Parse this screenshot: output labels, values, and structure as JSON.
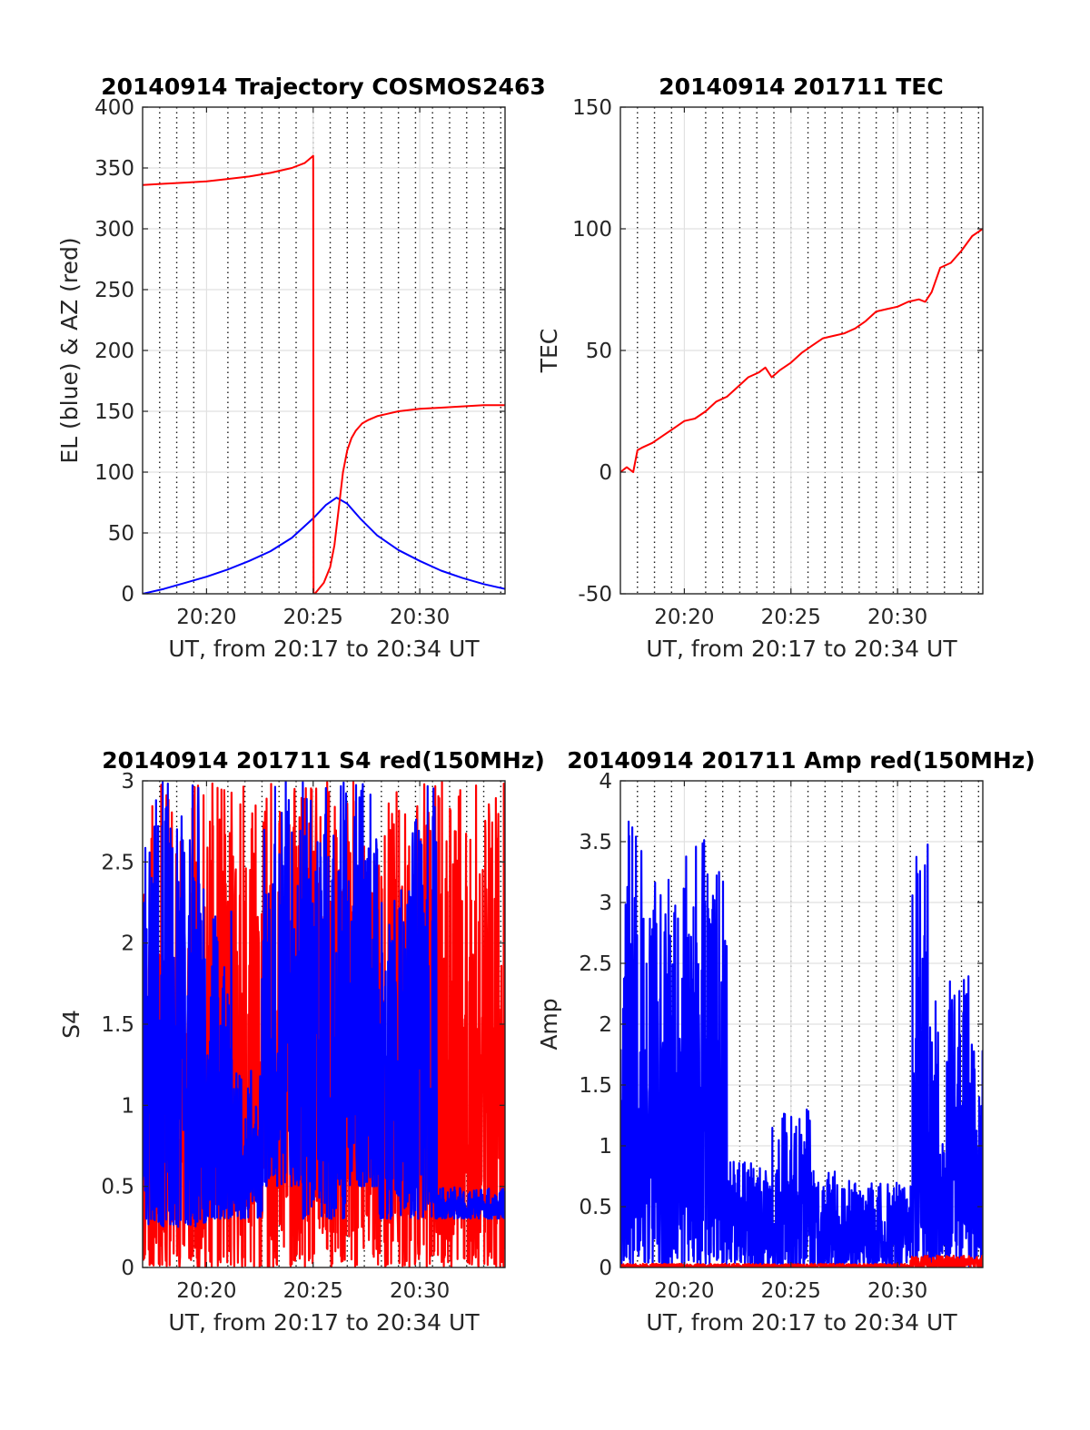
{
  "chart_data": [
    {
      "type": "line",
      "title": "20140914 Trajectory COSMOS2463",
      "xlabel": "UT, from 20:17 to 20:34 UT",
      "ylabel": "EL (blue) & AZ (red)",
      "xlim": [
        17,
        34
      ],
      "ylim": [
        0,
        400
      ],
      "xticks": [
        20,
        25,
        30
      ],
      "xtick_labels": [
        "20:20",
        "20:25",
        "20:30"
      ],
      "yticks": [
        0,
        50,
        100,
        150,
        200,
        250,
        300,
        350,
        400
      ],
      "ytick_labels": [
        "0",
        "50",
        "100",
        "150",
        "200",
        "250",
        "300",
        "350",
        "400"
      ],
      "minor_x_grid": [
        17.8,
        18.6,
        19.4,
        21.0,
        21.8,
        22.6,
        23.4,
        24.2,
        25.0,
        25.8,
        26.6,
        27.4,
        28.2,
        29.0,
        29.8,
        30.6,
        31.4,
        32.2,
        33.0,
        33.8
      ],
      "grid": true,
      "series": [
        {
          "name": "EL",
          "color": "#0000ff",
          "x": [
            17.0,
            18.0,
            19.0,
            20.0,
            21.0,
            22.0,
            23.0,
            24.0,
            25.0,
            25.6,
            26.1,
            26.6,
            27.2,
            28.0,
            29.0,
            30.0,
            31.0,
            32.0,
            33.0,
            34.0
          ],
          "y": [
            0,
            4,
            9,
            14,
            20,
            27,
            35,
            46,
            62,
            73,
            79,
            74,
            62,
            48,
            36,
            27,
            19,
            13,
            8,
            4
          ]
        },
        {
          "name": "AZ",
          "color": "#ff0000",
          "x": [
            17.0,
            18.0,
            19.0,
            20.0,
            21.0,
            22.0,
            23.0,
            24.0,
            24.6,
            25.0,
            25.02,
            25.08,
            25.5,
            25.8,
            26.0,
            26.2,
            26.4,
            26.6,
            26.8,
            27.0,
            27.3,
            27.6,
            28.0,
            28.5,
            29.0,
            30.0,
            31.0,
            32.0,
            33.0,
            34.0
          ],
          "y": [
            336,
            337,
            338,
            339,
            341,
            343,
            346,
            350,
            354,
            360,
            1,
            0,
            9,
            22,
            40,
            70,
            100,
            118,
            128,
            134,
            140,
            143,
            146,
            148,
            150,
            152,
            153,
            154,
            155,
            155
          ]
        }
      ]
    },
    {
      "type": "line",
      "title": "20140914 201711 TEC",
      "xlabel": "UT, from 20:17 to 20:34 UT",
      "ylabel": "TEC",
      "xlim": [
        17,
        34
      ],
      "ylim": [
        -50,
        150
      ],
      "xticks": [
        20,
        25,
        30
      ],
      "xtick_labels": [
        "20:20",
        "20:25",
        "20:30"
      ],
      "yticks": [
        -50,
        0,
        50,
        100,
        150
      ],
      "ytick_labels": [
        "-50",
        "0",
        "50",
        "100",
        "150"
      ],
      "minor_x_grid": [
        17.8,
        18.6,
        19.4,
        21.0,
        21.8,
        22.6,
        23.4,
        24.2,
        25.0,
        25.8,
        26.6,
        27.4,
        28.2,
        29.0,
        29.8,
        30.6,
        31.4,
        32.2,
        33.0,
        33.8
      ],
      "grid": true,
      "series": [
        {
          "name": "TEC",
          "color": "#ff0000",
          "x": [
            17.0,
            17.3,
            17.6,
            17.8,
            18.0,
            18.5,
            19.0,
            19.5,
            20.0,
            20.5,
            21.0,
            21.5,
            22.0,
            22.5,
            23.0,
            23.5,
            23.8,
            24.1,
            24.5,
            25.0,
            25.5,
            26.0,
            26.5,
            27.0,
            27.5,
            28.0,
            28.5,
            29.0,
            29.5,
            30.0,
            30.5,
            31.0,
            31.3,
            31.6,
            32.0,
            32.5,
            33.0,
            33.5,
            34.0
          ],
          "y": [
            0,
            2,
            0,
            9,
            10,
            12,
            15,
            18,
            21,
            22,
            25,
            29,
            31,
            35,
            39,
            41,
            43,
            39,
            42,
            45,
            49,
            52,
            55,
            56,
            57,
            59,
            62,
            66,
            67,
            68,
            70,
            71,
            70,
            74,
            84,
            86,
            91,
            97,
            100
          ]
        }
      ]
    },
    {
      "type": "line",
      "title": "20140914 201711 S4 red(150MHz)",
      "xlabel": "UT, from 20:17 to 20:34 UT",
      "ylabel": "S4",
      "xlim": [
        17,
        34
      ],
      "ylim": [
        0,
        3
      ],
      "xticks": [
        20,
        25,
        30
      ],
      "xtick_labels": [
        "20:20",
        "20:25",
        "20:30"
      ],
      "yticks": [
        0,
        0.5,
        1,
        1.5,
        2,
        2.5,
        3
      ],
      "ytick_labels": [
        "0",
        "0.5",
        "1",
        "1.5",
        "2",
        "2.5",
        "3"
      ],
      "minor_x_grid": [
        17.8,
        18.6,
        19.4,
        21.0,
        21.8,
        22.6,
        23.4,
        24.2,
        25.0,
        25.8,
        26.6,
        27.4,
        28.2,
        29.0,
        29.8,
        30.6,
        31.4,
        32.2,
        33.0,
        33.8
      ],
      "grid": true,
      "series": [
        {
          "name": "red",
          "color": "#ff0000",
          "style": "noise",
          "seed": 11,
          "segments": [
            [
              17.0,
              20.2,
              0.0,
              3.0
            ],
            [
              20.2,
              21.3,
              0.0,
              3.0
            ],
            [
              21.3,
              22.8,
              0.0,
              3.0
            ],
            [
              22.8,
              25.5,
              0.0,
              3.0
            ],
            [
              25.5,
              27.2,
              0.0,
              3.0
            ],
            [
              27.2,
              29.0,
              0.0,
              3.0
            ],
            [
              29.0,
              30.5,
              0.0,
              3.0
            ],
            [
              30.5,
              32.5,
              0.0,
              3.0
            ],
            [
              32.5,
              34.0,
              0.0,
              3.0
            ]
          ]
        },
        {
          "name": "blue",
          "color": "#0000ff",
          "style": "noise",
          "seed": 23,
          "segments": [
            [
              17.0,
              18.0,
              0.25,
              3.0
            ],
            [
              18.0,
              20.0,
              0.25,
              3.0
            ],
            [
              20.0,
              21.2,
              0.3,
              2.2
            ],
            [
              21.2,
              22.6,
              0.3,
              1.3
            ],
            [
              22.6,
              24.5,
              0.5,
              3.0
            ],
            [
              24.5,
              26.5,
              0.3,
              3.0
            ],
            [
              26.5,
              28.0,
              0.5,
              3.0
            ],
            [
              28.0,
              29.5,
              0.3,
              2.4
            ],
            [
              29.5,
              30.8,
              0.3,
              3.0
            ],
            [
              30.8,
              34.0,
              0.3,
              0.5
            ]
          ]
        }
      ]
    },
    {
      "type": "line",
      "title": "20140914 201711 Amp red(150MHz)",
      "xlabel": "UT, from 20:17 to 20:34 UT",
      "ylabel": "Amp",
      "xlim": [
        17,
        34
      ],
      "ylim": [
        0,
        4
      ],
      "xticks": [
        20,
        25,
        30
      ],
      "xtick_labels": [
        "20:20",
        "20:25",
        "20:30"
      ],
      "yticks": [
        0,
        0.5,
        1,
        1.5,
        2,
        2.5,
        3,
        3.5,
        4
      ],
      "ytick_labels": [
        "0",
        "0.5",
        "1",
        "1.5",
        "2",
        "2.5",
        "3",
        "3.5",
        "4"
      ],
      "minor_x_grid": [
        17.8,
        18.6,
        19.4,
        21.0,
        21.8,
        22.6,
        23.4,
        24.2,
        25.0,
        25.8,
        26.6,
        27.4,
        28.2,
        29.0,
        29.8,
        30.6,
        31.4,
        32.2,
        33.0,
        33.8
      ],
      "grid": true,
      "series": [
        {
          "name": "blue",
          "color": "#0000ff",
          "style": "noise",
          "seed": 37,
          "segments": [
            [
              17.0,
              18.0,
              0.0,
              3.7
            ],
            [
              18.0,
              20.0,
              0.0,
              3.2
            ],
            [
              20.0,
              21.3,
              0.0,
              3.6
            ],
            [
              21.3,
              22.0,
              0.0,
              3.3
            ],
            [
              22.0,
              24.0,
              0.0,
              0.9
            ],
            [
              24.0,
              26.0,
              0.0,
              1.3
            ],
            [
              26.0,
              28.0,
              0.0,
              0.8
            ],
            [
              28.0,
              30.7,
              0.0,
              0.7
            ],
            [
              30.7,
              31.5,
              0.0,
              3.5
            ],
            [
              31.5,
              34.0,
              0.0,
              2.4
            ]
          ]
        },
        {
          "name": "red",
          "color": "#ff0000",
          "style": "noise",
          "seed": 51,
          "segments": [
            [
              17.0,
              30.6,
              0.0,
              0.03
            ],
            [
              30.6,
              34.0,
              0.0,
              0.1
            ]
          ]
        }
      ]
    }
  ]
}
